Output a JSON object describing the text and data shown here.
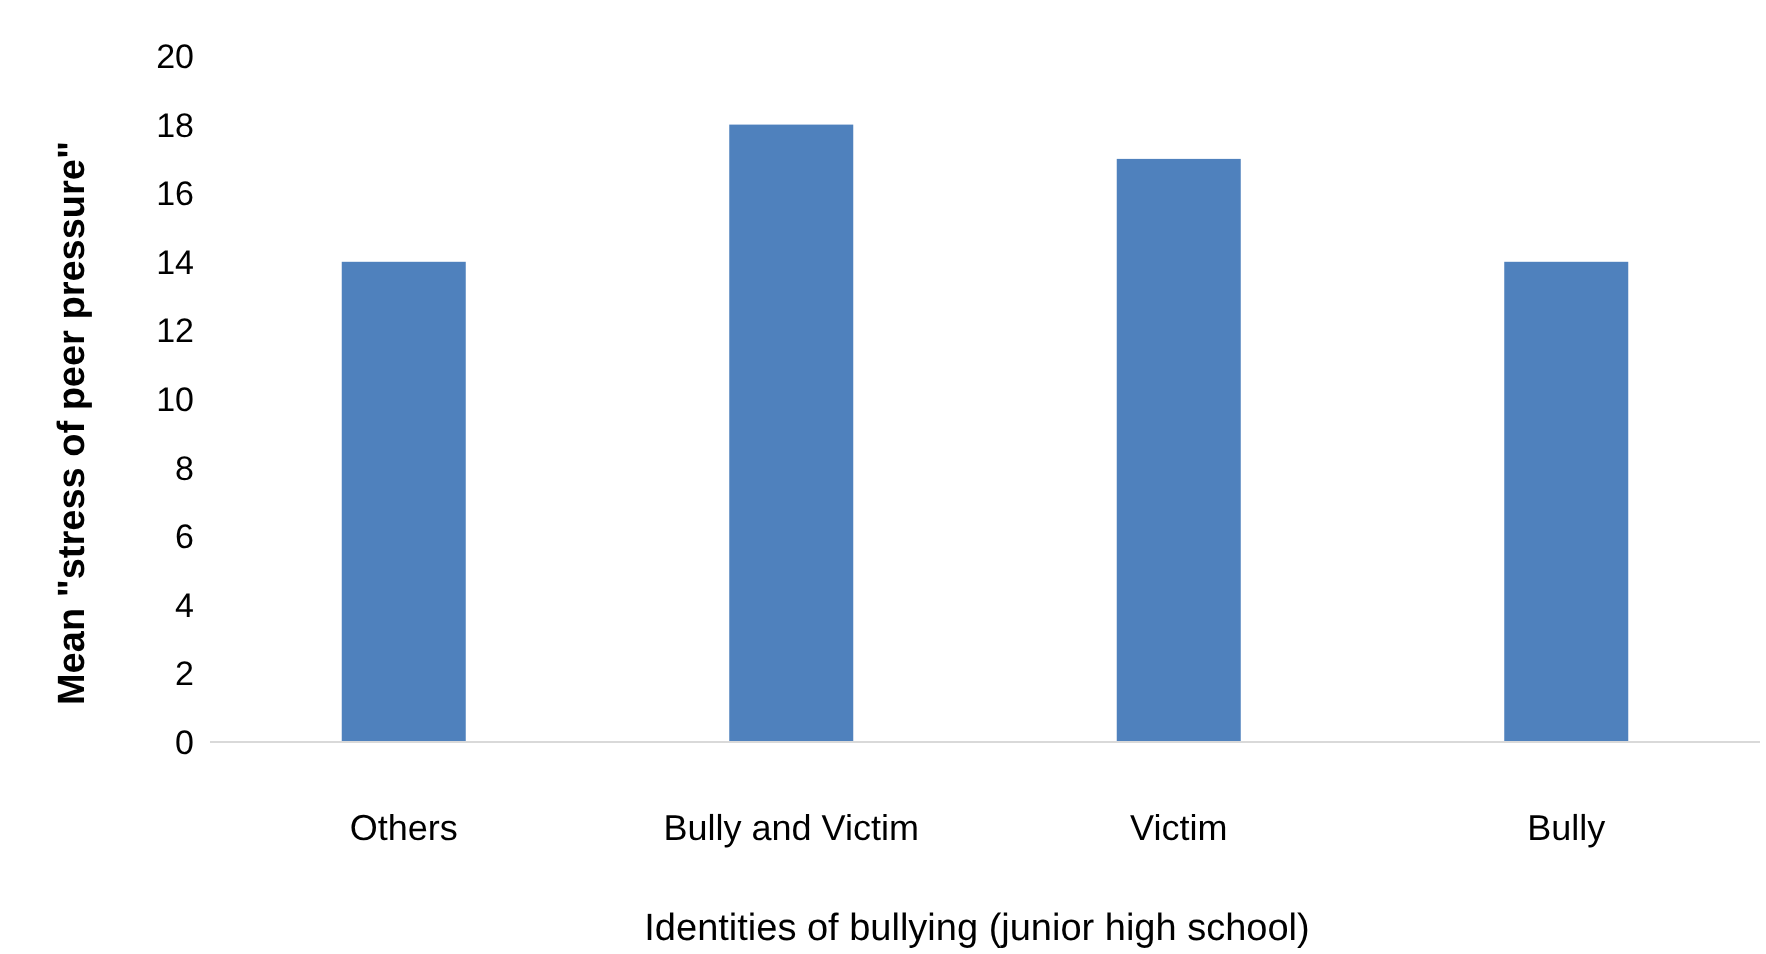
{
  "chart_data": {
    "type": "bar",
    "xlabel": "Identities of bullying (junior high school)",
    "ylabel": "Mean \"stress of peer pressure\"",
    "categories": [
      "Others",
      "Bully and Victim",
      "Victim",
      "Bully"
    ],
    "values": [
      14,
      18,
      17,
      14
    ],
    "color": "#4f81bd",
    "ylim": [
      0,
      20
    ],
    "yticks": [
      0,
      2,
      4,
      6,
      8,
      10,
      12,
      14,
      16,
      18,
      20
    ],
    "grid": false
  }
}
